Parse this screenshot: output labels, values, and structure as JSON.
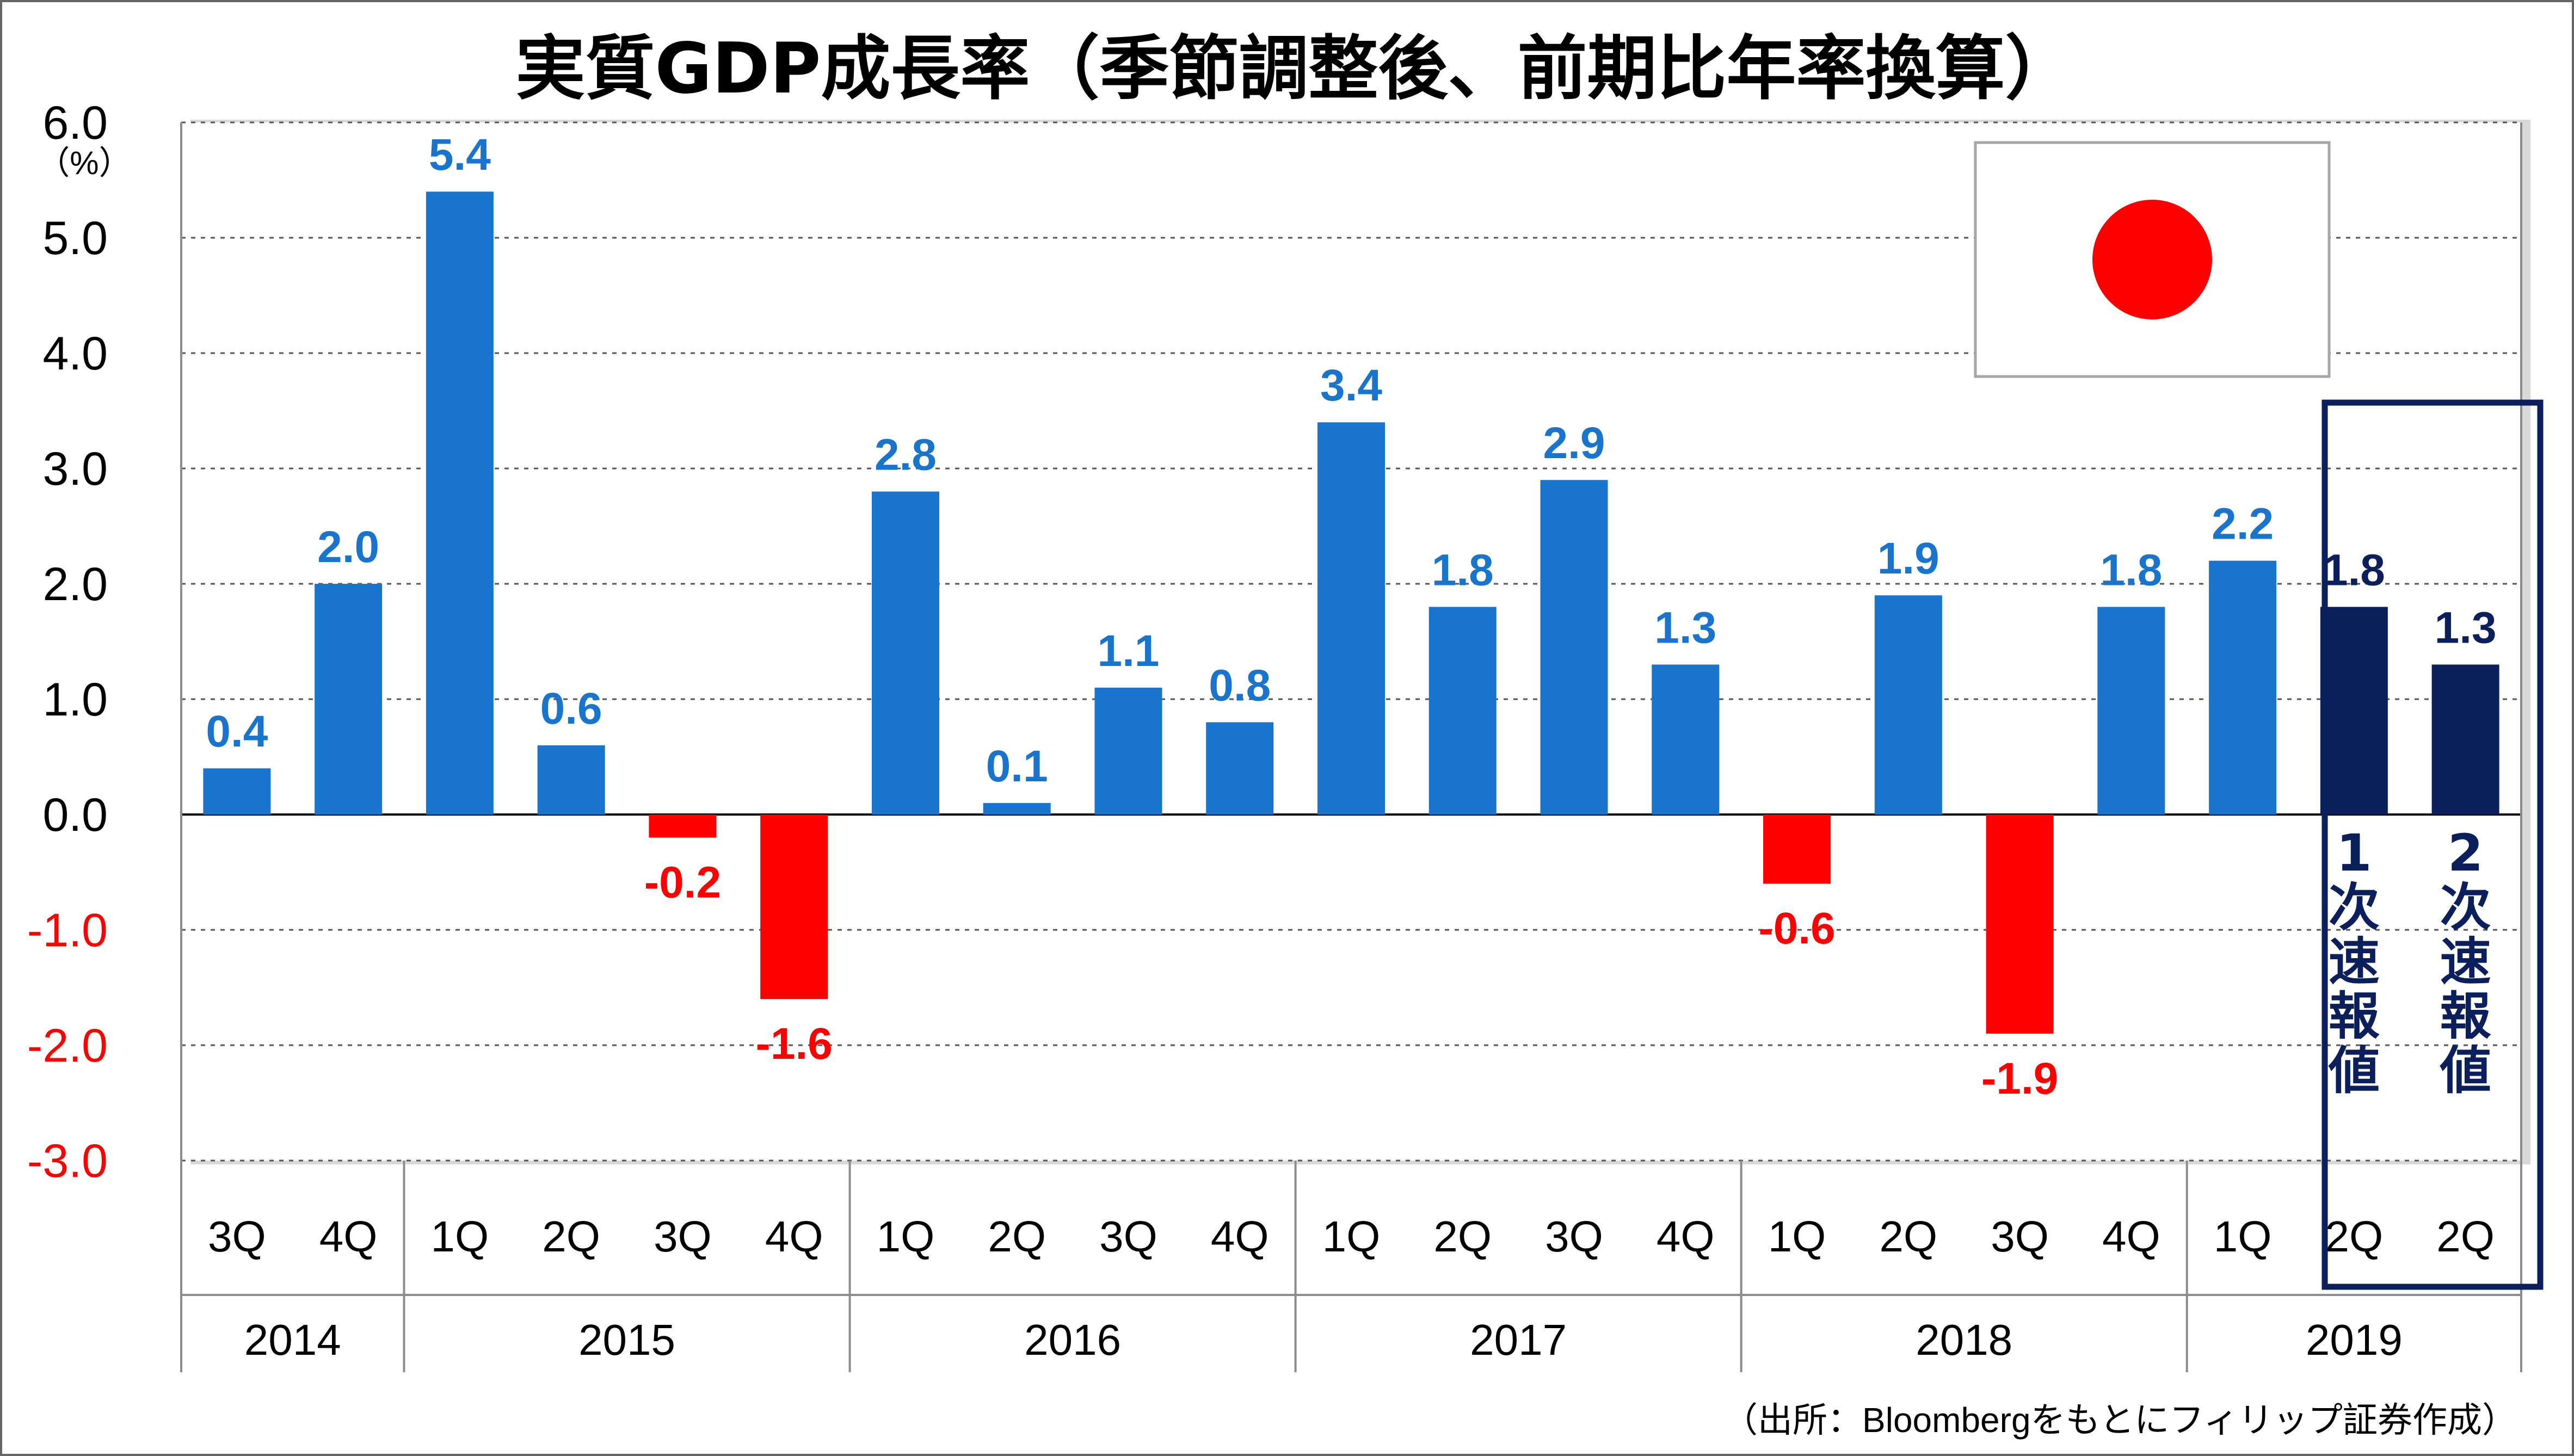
{
  "chart_data": {
    "type": "bar",
    "title": "実質GDP成長率（季節調整後、前期比年率換算）",
    "ylabel": "（%）",
    "ylim": [
      -3.0,
      6.0
    ],
    "yticks": [
      "6.0",
      "5.0",
      "4.0",
      "3.0",
      "2.0",
      "1.0",
      "0.0",
      "-1.0",
      "-2.0",
      "-3.0"
    ],
    "ytick_values": [
      6,
      5,
      4,
      3,
      2,
      1,
      0,
      -1,
      -2,
      -3
    ],
    "grid": true,
    "quarters": [
      "3Q",
      "4Q",
      "1Q",
      "2Q",
      "3Q",
      "4Q",
      "1Q",
      "2Q",
      "3Q",
      "4Q",
      "1Q",
      "2Q",
      "3Q",
      "4Q",
      "1Q",
      "2Q",
      "3Q",
      "4Q",
      "1Q",
      "2Q",
      "2Q"
    ],
    "years": [
      {
        "label": "2014",
        "span": 2
      },
      {
        "label": "2015",
        "span": 4
      },
      {
        "label": "2016",
        "span": 4
      },
      {
        "label": "2017",
        "span": 4
      },
      {
        "label": "2018",
        "span": 4
      },
      {
        "label": "2019",
        "span": 3
      }
    ],
    "values": [
      0.4,
      2.0,
      5.4,
      0.6,
      -0.2,
      -1.6,
      2.8,
      0.1,
      1.1,
      0.8,
      3.4,
      1.8,
      2.9,
      1.3,
      -0.6,
      1.9,
      -1.9,
      1.8,
      2.2,
      1.8,
      1.3
    ],
    "data_labels": [
      "0.4",
      "2.0",
      "5.4",
      "0.6",
      "-0.2",
      "-1.6",
      "2.8",
      "0.1",
      "1.1",
      "0.8",
      "3.4",
      "1.8",
      "2.9",
      "1.3",
      "-0.6",
      "1.9",
      "-1.9",
      "1.8",
      "2.2",
      "1.8",
      "1.3"
    ],
    "highlighted_bars": [
      19,
      20
    ],
    "highlight_labels": [
      "1次速報値",
      "2次速報値"
    ],
    "colors": {
      "positive": "#1874CD",
      "negative": "#FF0000",
      "highlight": "#0A1F5C",
      "positive_label": "#1874CD",
      "negative_label": "#FF0000",
      "highlight_label": "#0A1F5C"
    },
    "source_note": "（出所：Bloombergをもとにフィリップ証券作成）",
    "flag": {
      "name": "japan-flag-icon",
      "circle_color": "#FF0000"
    }
  }
}
